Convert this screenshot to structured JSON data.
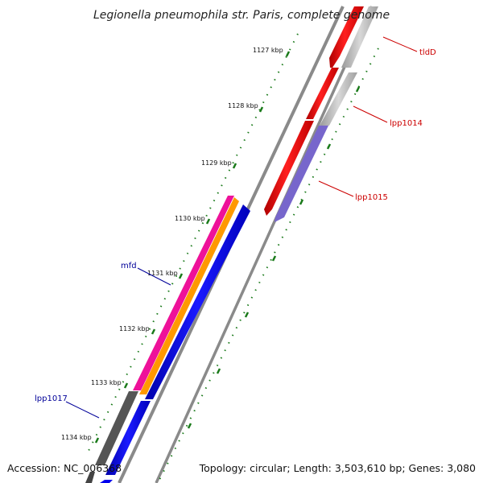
{
  "title": "Legionella pneumophila str. Paris, complete genome",
  "footer": {
    "accession": "Accession: NC_006368",
    "summary": "Topology: circular; Length: 3,503,610 bp; Genes: 3,080"
  },
  "ticks": [
    "1127 kbp",
    "1128 kbp",
    "1129 kbp",
    "1130 kbp",
    "1131 kbp",
    "1132 kbp",
    "1133 kbp",
    "1134 kbp"
  ],
  "gene_labels": [
    {
      "name": "tldD",
      "color": "#cc0000"
    },
    {
      "name": "lpp1014",
      "color": "#cc0000"
    },
    {
      "name": "lpp1015",
      "color": "#cc0000"
    },
    {
      "name": "mfd",
      "color": "#000099"
    },
    {
      "name": "lpp1017",
      "color": "#000099"
    }
  ],
  "colors": {
    "forward_cds": "#ff0000",
    "reverse_cds": "#0000ff",
    "gene_grey": "#b8b8b8",
    "gene_dark_grey": "#666666",
    "purple_feature": "#7766cc",
    "magenta_feature": "#ee1199",
    "orange_feature": "#ff9900",
    "backbone": "#8a8a8a",
    "tick_green": "#1a7a1a"
  }
}
